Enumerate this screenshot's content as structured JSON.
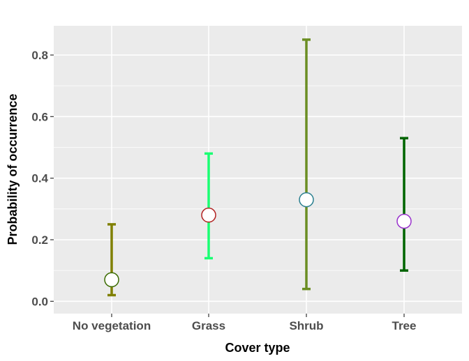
{
  "chart_data": {
    "type": "errorbar",
    "title": "",
    "xlabel": "Cover type",
    "ylabel": "Probability of occurrence",
    "categories": [
      "No vegetation",
      "Grass",
      "Shrub",
      "Tree"
    ],
    "points": [
      {
        "category": "No vegetation",
        "y": 0.07,
        "lower": 0.02,
        "upper": 0.25,
        "bar_color": "#808000",
        "point_edge_color": "#3a6b00"
      },
      {
        "category": "Grass",
        "y": 0.28,
        "lower": 0.14,
        "upper": 0.48,
        "bar_color": "#1aff73",
        "point_edge_color": "#b22222"
      },
      {
        "category": "Shrub",
        "y": 0.33,
        "lower": 0.04,
        "upper": 0.85,
        "bar_color": "#6b8e23",
        "point_edge_color": "#2a7f8f"
      },
      {
        "category": "Tree",
        "y": 0.26,
        "lower": 0.1,
        "upper": 0.53,
        "bar_color": "#006400",
        "point_edge_color": "#9932cc"
      }
    ],
    "yticks": [
      0.0,
      0.2,
      0.4,
      0.6,
      0.8
    ],
    "ytick_labels": [
      "0.0",
      "0.2",
      "0.4",
      "0.6",
      "0.8"
    ],
    "ylim": [
      -0.04,
      0.895
    ],
    "grid": true,
    "panel_background": "#ebebeb",
    "grid_color": "#ffffff"
  }
}
